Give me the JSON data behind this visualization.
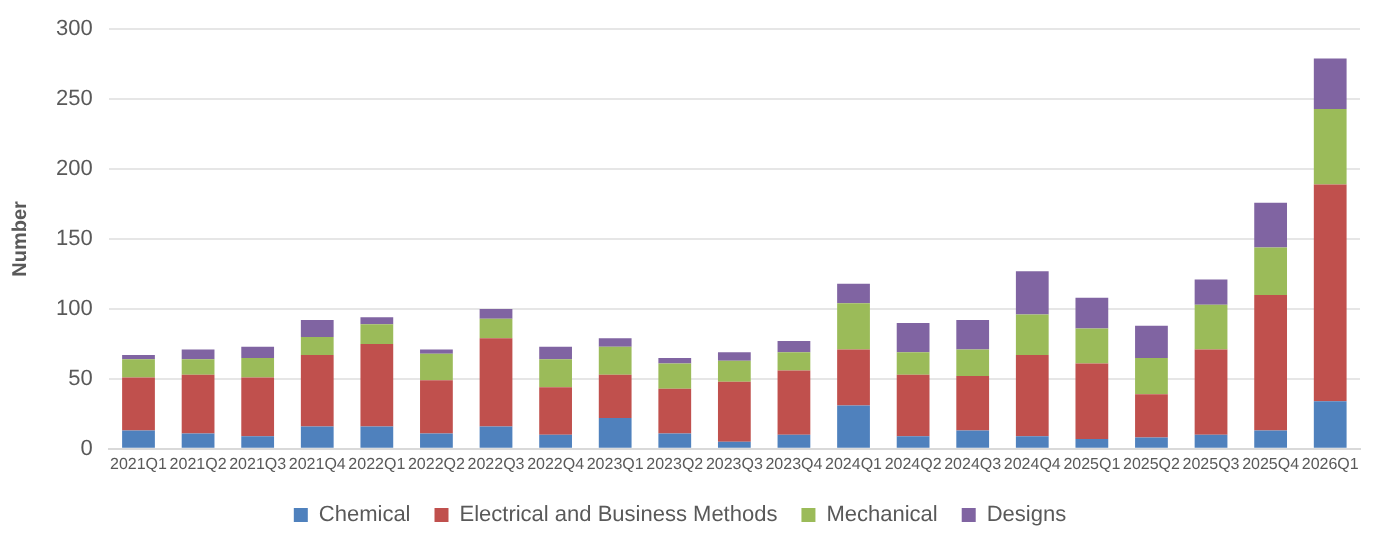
{
  "chart_data": {
    "type": "bar",
    "stacked": true,
    "ylabel": "Number",
    "categories": [
      "2021Q1",
      "2021Q2",
      "2021Q3",
      "2021Q4",
      "2022Q1",
      "2022Q2",
      "2022Q3",
      "2022Q4",
      "2023Q1",
      "2023Q2",
      "2023Q3",
      "2023Q4",
      "2024Q1",
      "2024Q2",
      "2024Q3",
      "2024Q4",
      "2025Q1",
      "2025Q2",
      "2025Q3",
      "2025Q4",
      "2026Q1"
    ],
    "series": [
      {
        "name": "Chemical",
        "color": "#4f81bd",
        "values": [
          13,
          11,
          9,
          16,
          16,
          11,
          16,
          10,
          22,
          11,
          5,
          10,
          31,
          9,
          13,
          9,
          7,
          8,
          10,
          13,
          34
        ]
      },
      {
        "name": "Electrical and Business Methods",
        "color": "#c0504d",
        "values": [
          38,
          42,
          42,
          51,
          59,
          38,
          63,
          34,
          31,
          32,
          43,
          46,
          40,
          44,
          39,
          58,
          54,
          31,
          61,
          97,
          155
        ]
      },
      {
        "name": "Mechanical",
        "color": "#9bbb59",
        "values": [
          13,
          11,
          14,
          13,
          14,
          19,
          14,
          20,
          20,
          18,
          15,
          13,
          33,
          16,
          19,
          29,
          25,
          26,
          32,
          34,
          54
        ]
      },
      {
        "name": "Designs",
        "color": "#8064a2",
        "values": [
          3,
          7,
          8,
          12,
          5,
          3,
          7,
          9,
          6,
          4,
          6,
          8,
          14,
          21,
          21,
          31,
          22,
          23,
          18,
          32,
          36
        ]
      }
    ],
    "ylim": [
      0,
      300
    ],
    "yticks": [
      0,
      50,
      100,
      150,
      200,
      250,
      300
    ],
    "grid": "y",
    "legend": "bottom"
  }
}
